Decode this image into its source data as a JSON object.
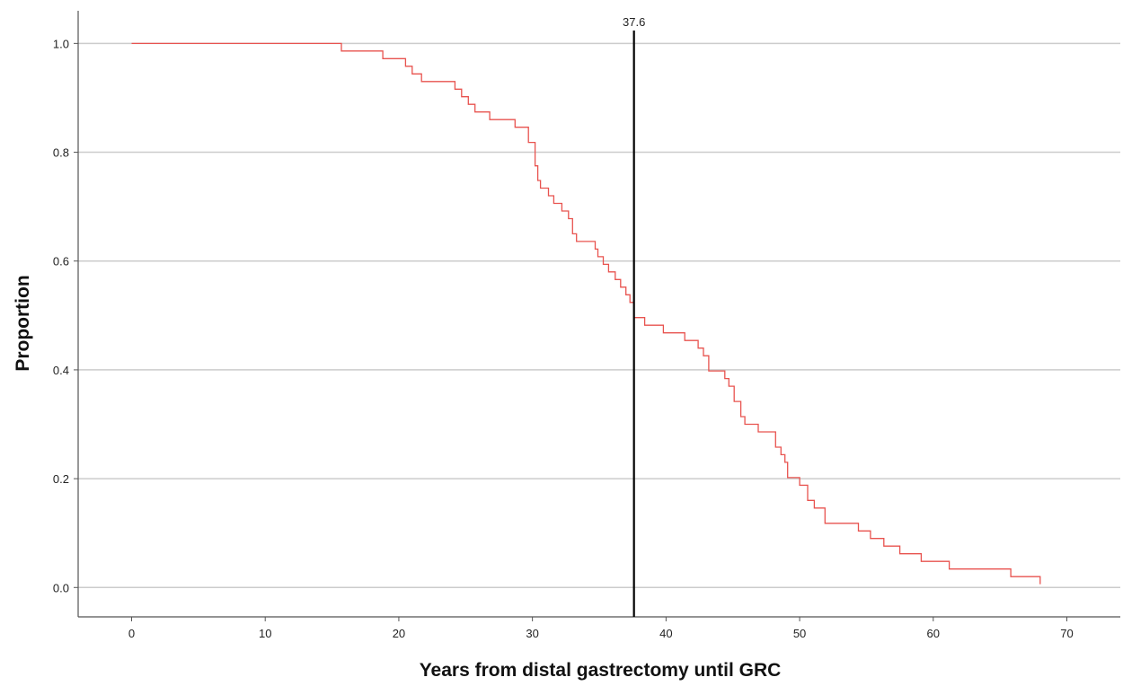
{
  "chart_data": {
    "type": "line",
    "subtype": "step",
    "title": "",
    "xlabel": "Years from distal gastrectomy until GRC",
    "ylabel": "Proportion",
    "xlim": [
      -4,
      74
    ],
    "ylim": [
      -0.054,
      1.06
    ],
    "xticks": [
      0,
      10,
      20,
      30,
      40,
      50,
      60,
      70
    ],
    "xtick_labels": [
      "0",
      "10",
      "20",
      "30",
      "40",
      "50",
      "60",
      "70"
    ],
    "yticks": [
      0.0,
      0.2,
      0.4,
      0.6,
      0.8,
      1.0
    ],
    "ytick_labels": [
      "0.0",
      "0.2",
      "0.4",
      "0.6",
      "0.8",
      "1.0"
    ],
    "grid": "horizontal",
    "legend": "none",
    "series_color": "#e8534f",
    "reference_line": {
      "x": 37.6,
      "label": "37.6",
      "color": "#000000"
    },
    "series": [
      {
        "x": [
          0,
          15.7,
          18.8,
          20.5,
          21.0,
          21.7,
          24.2,
          24.7,
          25.2,
          25.7,
          26.8,
          28.7,
          29.7,
          30.2,
          30.4,
          30.6,
          31.2,
          31.6,
          32.2,
          32.7,
          33.0,
          33.3,
          34.7,
          34.9,
          35.3,
          35.7,
          36.2,
          36.6,
          37.0,
          37.3,
          37.6,
          38.4,
          39.8,
          41.4,
          42.4,
          42.8,
          43.2,
          44.4,
          44.7,
          45.1,
          45.6,
          45.9,
          46.9,
          48.2,
          48.6,
          48.9,
          49.1,
          50.0,
          50.6,
          51.1,
          51.9,
          54.4,
          55.3,
          56.3,
          57.5,
          59.1,
          61.2,
          65.8,
          68.0
        ],
        "y": [
          1.0,
          0.986,
          0.972,
          0.958,
          0.944,
          0.93,
          0.916,
          0.902,
          0.888,
          0.874,
          0.86,
          0.846,
          0.818,
          0.775,
          0.748,
          0.734,
          0.72,
          0.706,
          0.692,
          0.678,
          0.65,
          0.636,
          0.622,
          0.608,
          0.594,
          0.58,
          0.566,
          0.552,
          0.538,
          0.524,
          0.496,
          0.482,
          0.468,
          0.454,
          0.44,
          0.426,
          0.398,
          0.384,
          0.37,
          0.342,
          0.314,
          0.3,
          0.286,
          0.258,
          0.244,
          0.23,
          0.202,
          0.188,
          0.16,
          0.146,
          0.118,
          0.104,
          0.09,
          0.076,
          0.062,
          0.048,
          0.034,
          0.02,
          0.006
        ]
      }
    ]
  }
}
